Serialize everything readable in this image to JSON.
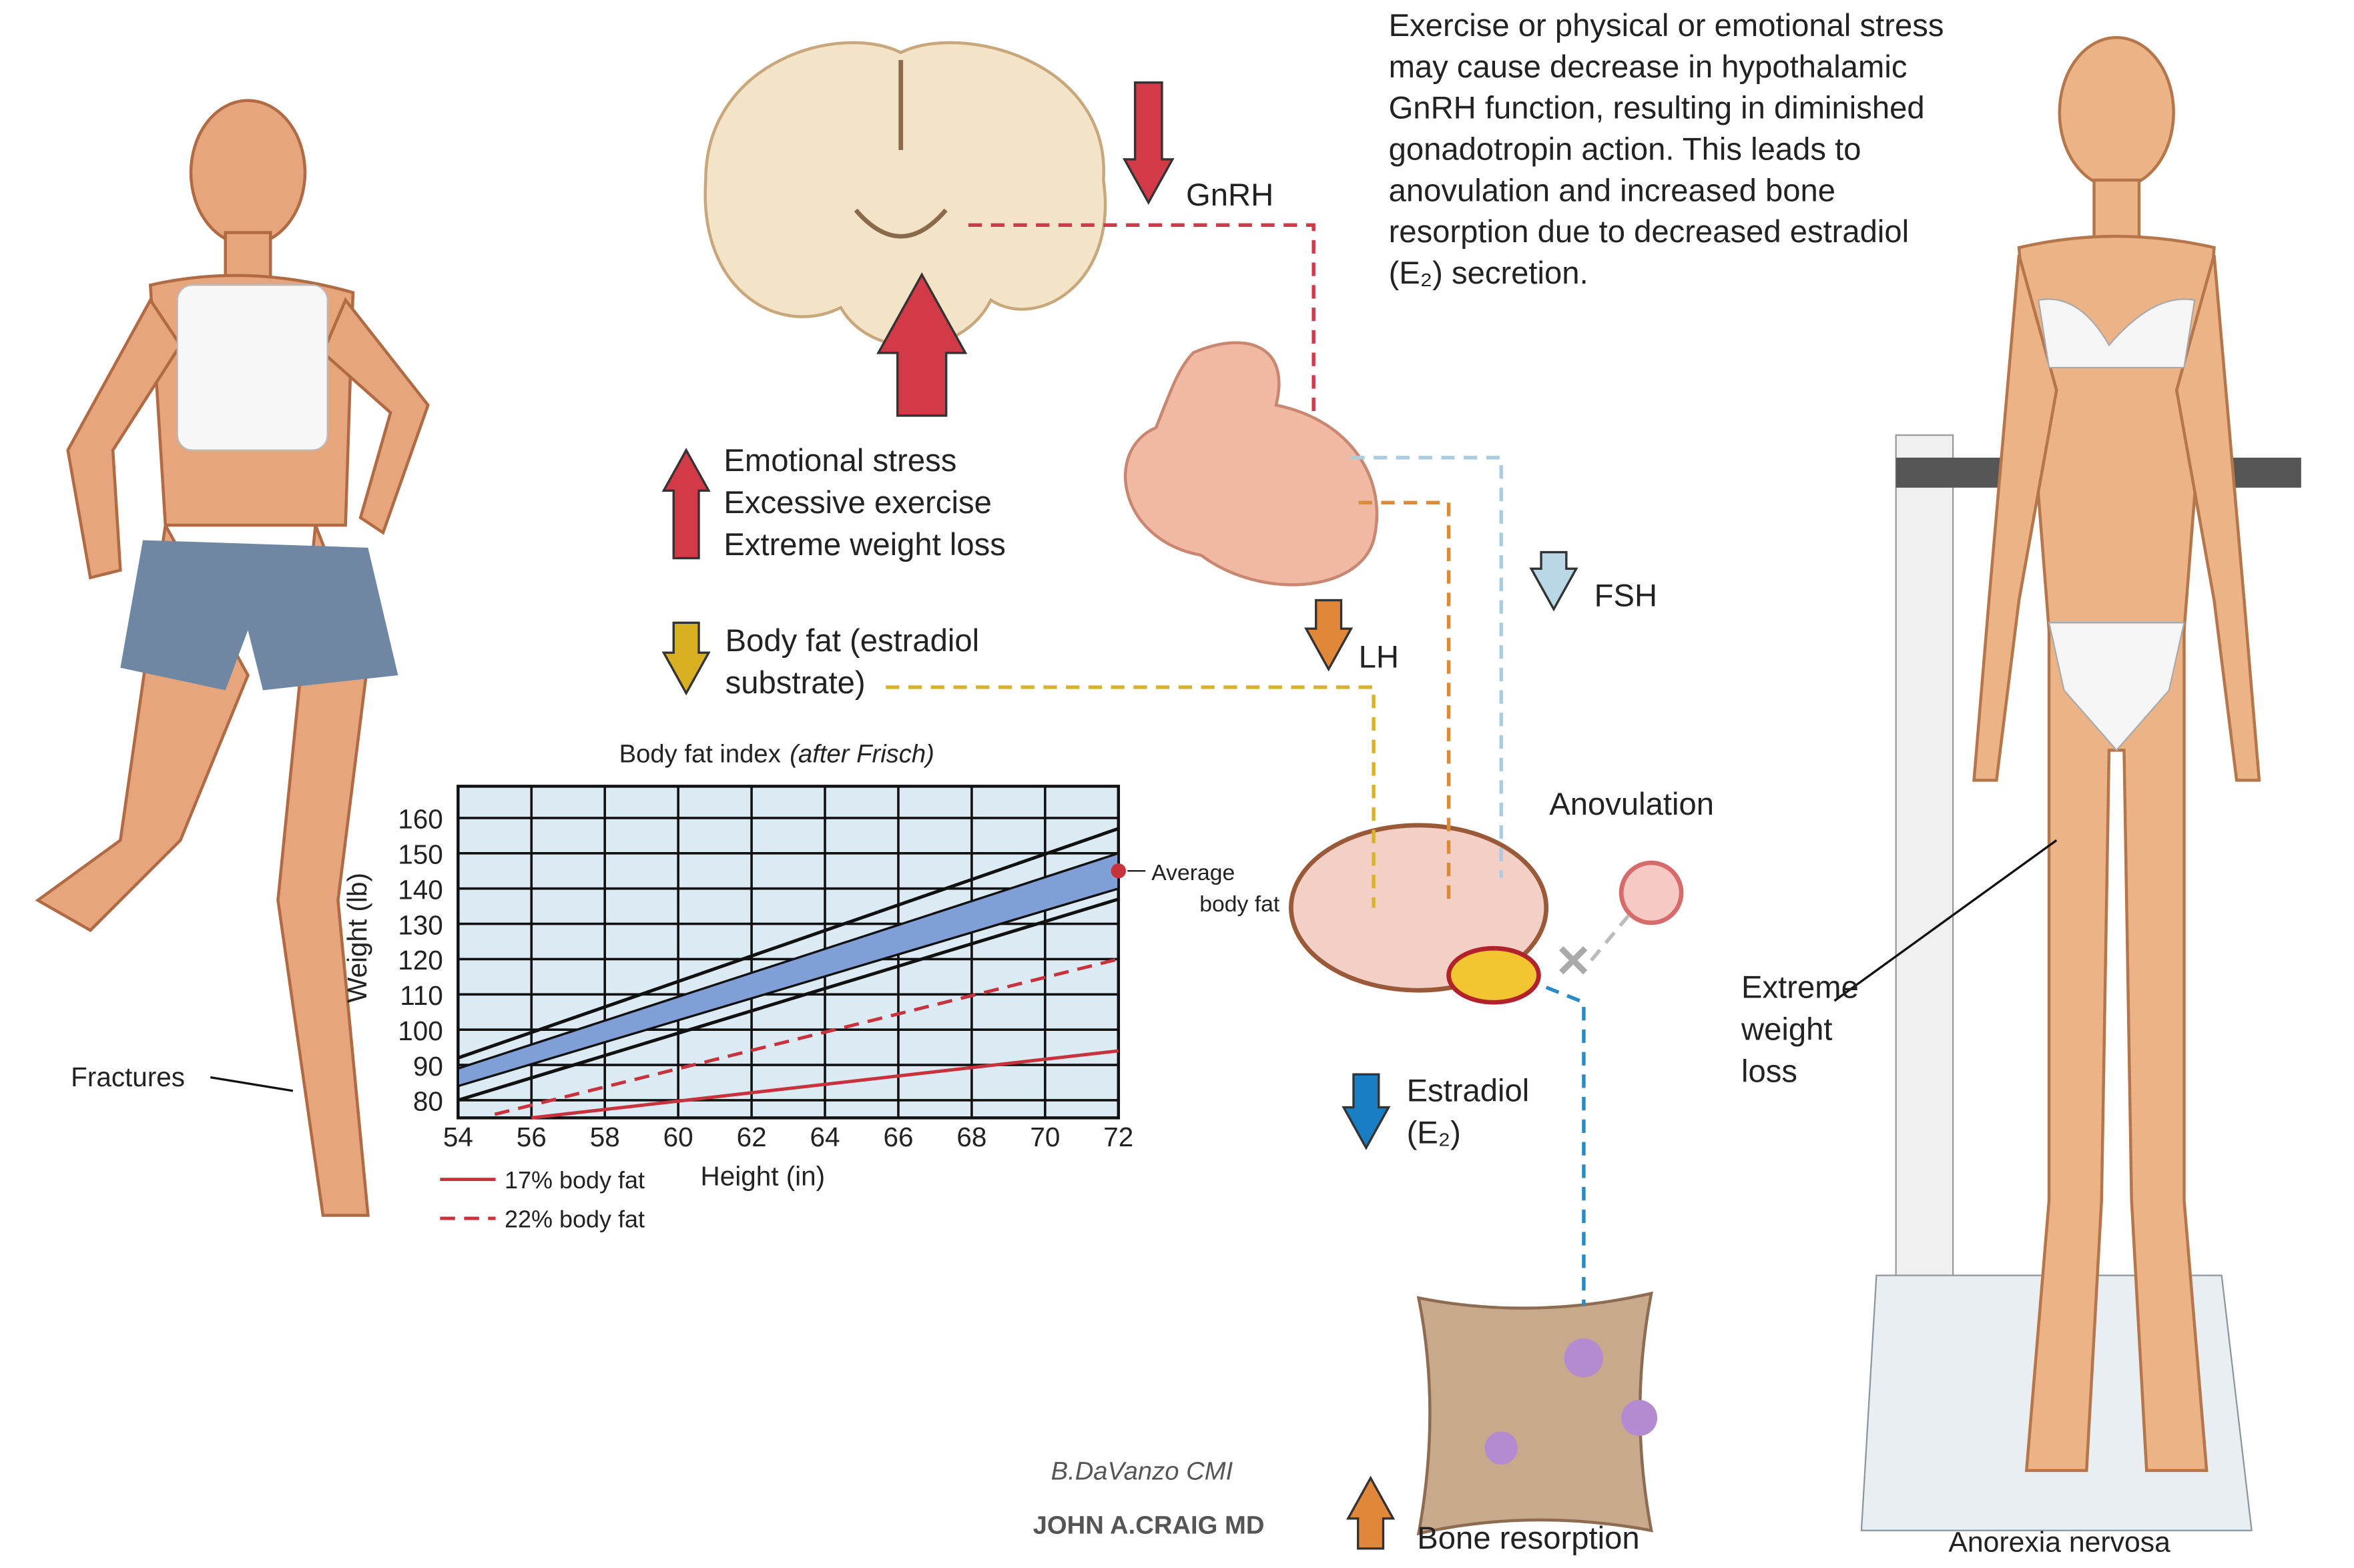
{
  "description": [
    "Exercise or physical or emotional stress",
    "may cause decrease in hypothalamic",
    "GnRH function, resulting in diminished",
    "gonadotropin action. This leads to",
    "anovulation and increased bone",
    "resorption due to decreased estradiol",
    "(E₂) secretion."
  ],
  "labels": {
    "gnrh": "GnRH",
    "causes": [
      "Emotional stress",
      "Excessive exercise",
      "Extreme weight loss"
    ],
    "body_fat": [
      "Body fat (estradiol",
      "substrate)"
    ],
    "lh": "LH",
    "fsh": "FSH",
    "anovulation": "Anovulation",
    "estradiol": [
      "Estradiol",
      "(E₂)"
    ],
    "bone": "Bone resorption",
    "fractures": "Fractures",
    "extreme": [
      "Extreme",
      "weight",
      "loss"
    ],
    "anorexia": "Anorexia nervosa",
    "signatures": [
      "B.DaVanzo CMI",
      "JOHN A.CRAIG MD"
    ]
  },
  "chart_data": {
    "type": "line",
    "title": "Body fat index",
    "subtitle": "(after Frisch)",
    "x_label": "Height (in)",
    "y_label": "Weight (lb)",
    "xlim": [
      54,
      72
    ],
    "ylim": [
      75,
      169
    ],
    "xticks": [
      54,
      56,
      58,
      60,
      62,
      64,
      66,
      68,
      70,
      72
    ],
    "yticks": [
      80,
      90,
      100,
      110,
      120,
      130,
      140,
      150,
      160
    ],
    "grid": true,
    "background": "#dcebf3",
    "series": [
      {
        "name": "17% body fat",
        "color": "#c8323c",
        "style": "solid",
        "x": [
          56,
          72
        ],
        "values": [
          75,
          94
        ]
      },
      {
        "name": "22% body fat",
        "color": "#c8323c",
        "style": "dashed",
        "x": [
          55,
          72
        ],
        "values": [
          76,
          120
        ]
      }
    ],
    "band": {
      "x": [
        54,
        72
      ],
      "lower": [
        84,
        140
      ],
      "upper": [
        89,
        150
      ],
      "color": "#7f9fd6"
    },
    "reference_lines": [
      {
        "x": [
          54,
          72
        ],
        "values": [
          92,
          157
        ],
        "color": "#111111"
      },
      {
        "x": [
          54,
          72
        ],
        "values": [
          80,
          137
        ],
        "color": "#111111"
      }
    ],
    "annotation": {
      "text": [
        "Average",
        "body fat"
      ],
      "x": 72,
      "y": 145,
      "color": "#c8323c"
    }
  }
}
